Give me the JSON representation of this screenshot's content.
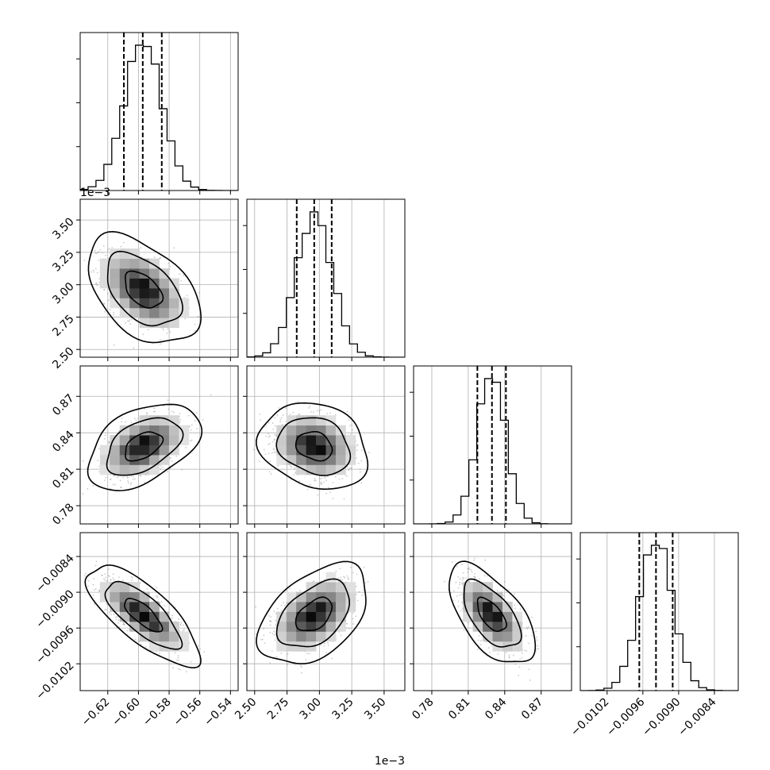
{
  "chart_data": {
    "type": "corner",
    "title": "",
    "parameters": [
      {
        "index": 0,
        "range": [
          -0.638,
          -0.535
        ],
        "ticks": [
          -0.62,
          -0.6,
          -0.58,
          -0.56,
          -0.54
        ],
        "tick_labels": [
          "−0.62",
          "−0.60",
          "−0.58",
          "−0.56",
          "−0.54"
        ],
        "quantiles": [
          -0.6095,
          -0.5972,
          -0.5848
        ],
        "mean": -0.597,
        "sd": 0.0122,
        "offset_label": ""
      },
      {
        "index": 1,
        "range": [
          2.44,
          3.66
        ],
        "ticks": [
          2.5,
          2.75,
          3.0,
          3.25,
          3.5
        ],
        "tick_labels": [
          "2.50",
          "2.75",
          "3.00",
          "3.25",
          "3.50"
        ],
        "quantiles": [
          2.825,
          2.96,
          3.095
        ],
        "mean": 2.96,
        "sd": 0.14,
        "offset_label": "1e−3"
      },
      {
        "index": 2,
        "range": [
          0.765,
          0.895
        ],
        "ticks": [
          0.78,
          0.81,
          0.84,
          0.87
        ],
        "tick_labels": [
          "0.78",
          "0.81",
          "0.84",
          "0.87"
        ],
        "quantiles": [
          0.8175,
          0.8295,
          0.841
        ],
        "mean": 0.829,
        "sd": 0.0118,
        "offset_label": ""
      },
      {
        "index": 3,
        "range": [
          -0.01065,
          -0.008
        ],
        "ticks": [
          -0.0102,
          -0.0096,
          -0.009,
          -0.0084
        ],
        "tick_labels": [
          "−0.0102",
          "−0.0096",
          "−0.0090",
          "−0.0084"
        ],
        "quantiles": [
          -0.00966,
          -0.00938,
          -0.0091
        ],
        "mean": -0.00938,
        "sd": 0.00028,
        "offset_label": ""
      }
    ],
    "correlations": {
      "0-1": -0.45,
      "0-2": 0.45,
      "1-2": -0.2,
      "0-3": -0.75,
      "1-3": 0.45,
      "2-3": -0.6
    },
    "histogram_bins": 20,
    "contour_levels": [
      0.393,
      0.865,
      0.989
    ],
    "grid": true,
    "axis_offset_labels": {
      "y_row1": "1e−3",
      "x_col1": "1e−3"
    }
  }
}
